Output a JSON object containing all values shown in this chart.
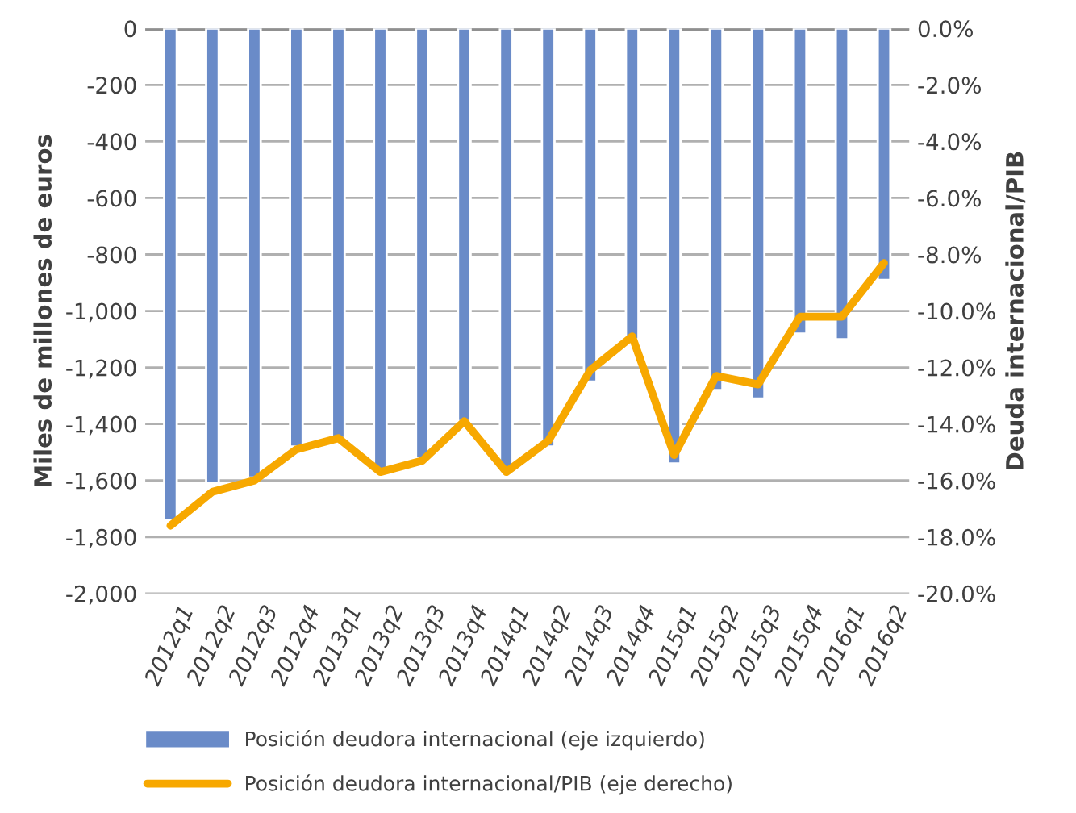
{
  "chart_data": {
    "type": "bar",
    "categories": [
      "2012q1",
      "2012q2",
      "2012q3",
      "2012q4",
      "2013q1",
      "2013q2",
      "2013q3",
      "2013q4",
      "2014q1",
      "2014q2",
      "2014q3",
      "2014q4",
      "2015q1",
      "2015q2",
      "2015q3",
      "2015q4",
      "2016q1",
      "2016q2"
    ],
    "ylabel": "Miles de millones de euros",
    "y2label": "Deuda internacional/PIB",
    "series": [
      {
        "name": "Posición deudora internacional (eje izquierdo)",
        "color": "#6a8bc8",
        "values": [
          -1740,
          -1610,
          -1590,
          -1480,
          -1450,
          -1560,
          -1520,
          -1390,
          -1560,
          -1480,
          -1250,
          -1100,
          -1540,
          -1280,
          -1310,
          -1080,
          -1100,
          -890
        ]
      },
      {
        "name": "Posición deudora internacional/PIB (eje derecho)",
        "type": "line",
        "axis": "y2",
        "color": "#f7a800",
        "values": [
          -17.6,
          -16.4,
          -16.0,
          -14.9,
          -14.5,
          -15.7,
          -15.3,
          -13.9,
          -15.7,
          -14.6,
          -12.1,
          -10.9,
          -15.1,
          -12.3,
          -12.6,
          -10.2,
          -10.2,
          -8.3
        ]
      }
    ],
    "ylim": [
      -2000,
      0
    ],
    "yticks": [
      {
        "value": -2000,
        "label": "-2,000"
      },
      {
        "value": -1800,
        "label": "-1,800"
      },
      {
        "value": -1600,
        "label": "-1,600"
      },
      {
        "value": -1400,
        "label": "-1,400"
      },
      {
        "value": -1200,
        "label": "-1,200"
      },
      {
        "value": -1000,
        "label": "-1,000"
      },
      {
        "value": -800,
        "label": "-800"
      },
      {
        "value": -600,
        "label": "-600"
      },
      {
        "value": -400,
        "label": "-400"
      },
      {
        "value": -200,
        "label": "-200"
      },
      0
    ],
    "y2lim": [
      -20,
      0
    ],
    "y2ticks": [
      {
        "value": -20,
        "label": "-20.0%"
      },
      {
        "value": -18,
        "label": "-18.0%"
      },
      {
        "value": -16,
        "label": "-16.0%"
      },
      {
        "value": -14,
        "label": "-14.0%"
      },
      {
        "value": -12,
        "label": "-12.0%"
      },
      {
        "value": -10,
        "label": "-10.0%"
      },
      {
        "value": -8,
        "label": "-8.0%"
      },
      {
        "value": -6,
        "label": "-6.0%"
      },
      {
        "value": -4,
        "label": "-4.0%"
      },
      {
        "value": -2,
        "label": "-2.0%"
      },
      {
        "value": 0,
        "label": "0.0%"
      }
    ],
    "grid": "y",
    "legend": "bottom",
    "line_style": "solid",
    "marker": "none"
  }
}
